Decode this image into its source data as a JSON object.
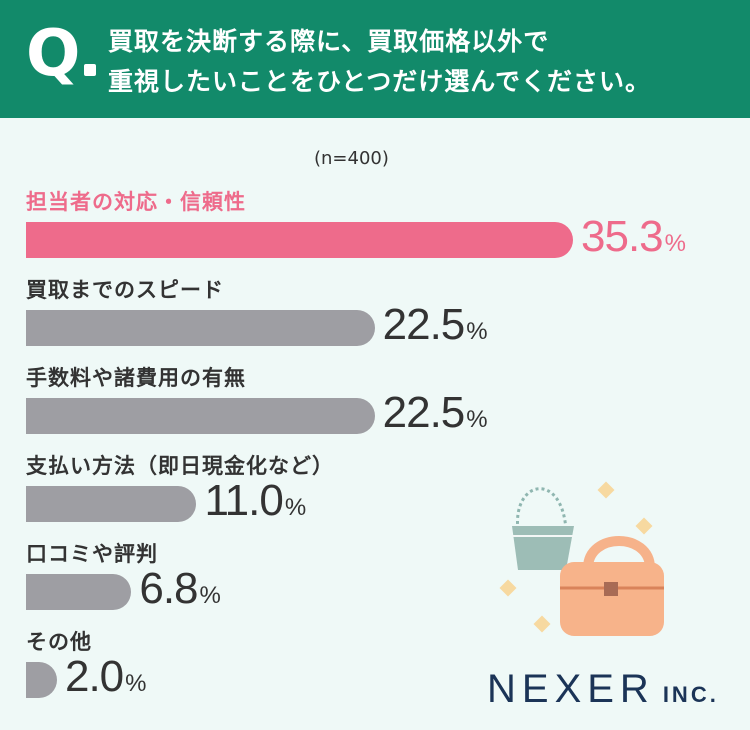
{
  "header": {
    "q_mark": "Q",
    "question_line1": "買取を決断する際に、買取価格以外で",
    "question_line2": "重視したいことをひとつだけ選んでください。"
  },
  "sample_size": "(n=400)",
  "chart_data": {
    "type": "bar",
    "orientation": "horizontal",
    "categories": [
      "担当者の対応・信頼性",
      "買取までのスピード",
      "手数料や諸費用の有無",
      "支払い方法（即日現金化など）",
      "口コミや評判",
      "その他"
    ],
    "values": [
      35.3,
      22.5,
      22.5,
      11.0,
      6.8,
      2.0
    ],
    "value_labels": [
      "35.3",
      "22.5",
      "22.5",
      "11.0",
      "6.8",
      "2.0"
    ],
    "unit": "%",
    "highlight_index": 0,
    "colors": {
      "highlight": "#ee6b8b",
      "default": "#9e9ea3"
    }
  },
  "logo": {
    "name": "NEXER",
    "suffix": "INC."
  },
  "icons": [
    "shoulder-bag-icon",
    "handbag-icon",
    "sparkle-icon"
  ],
  "colors": {
    "header_bg": "#128a6a",
    "page_bg": "#eff9f7",
    "logo": "#1b3457"
  }
}
